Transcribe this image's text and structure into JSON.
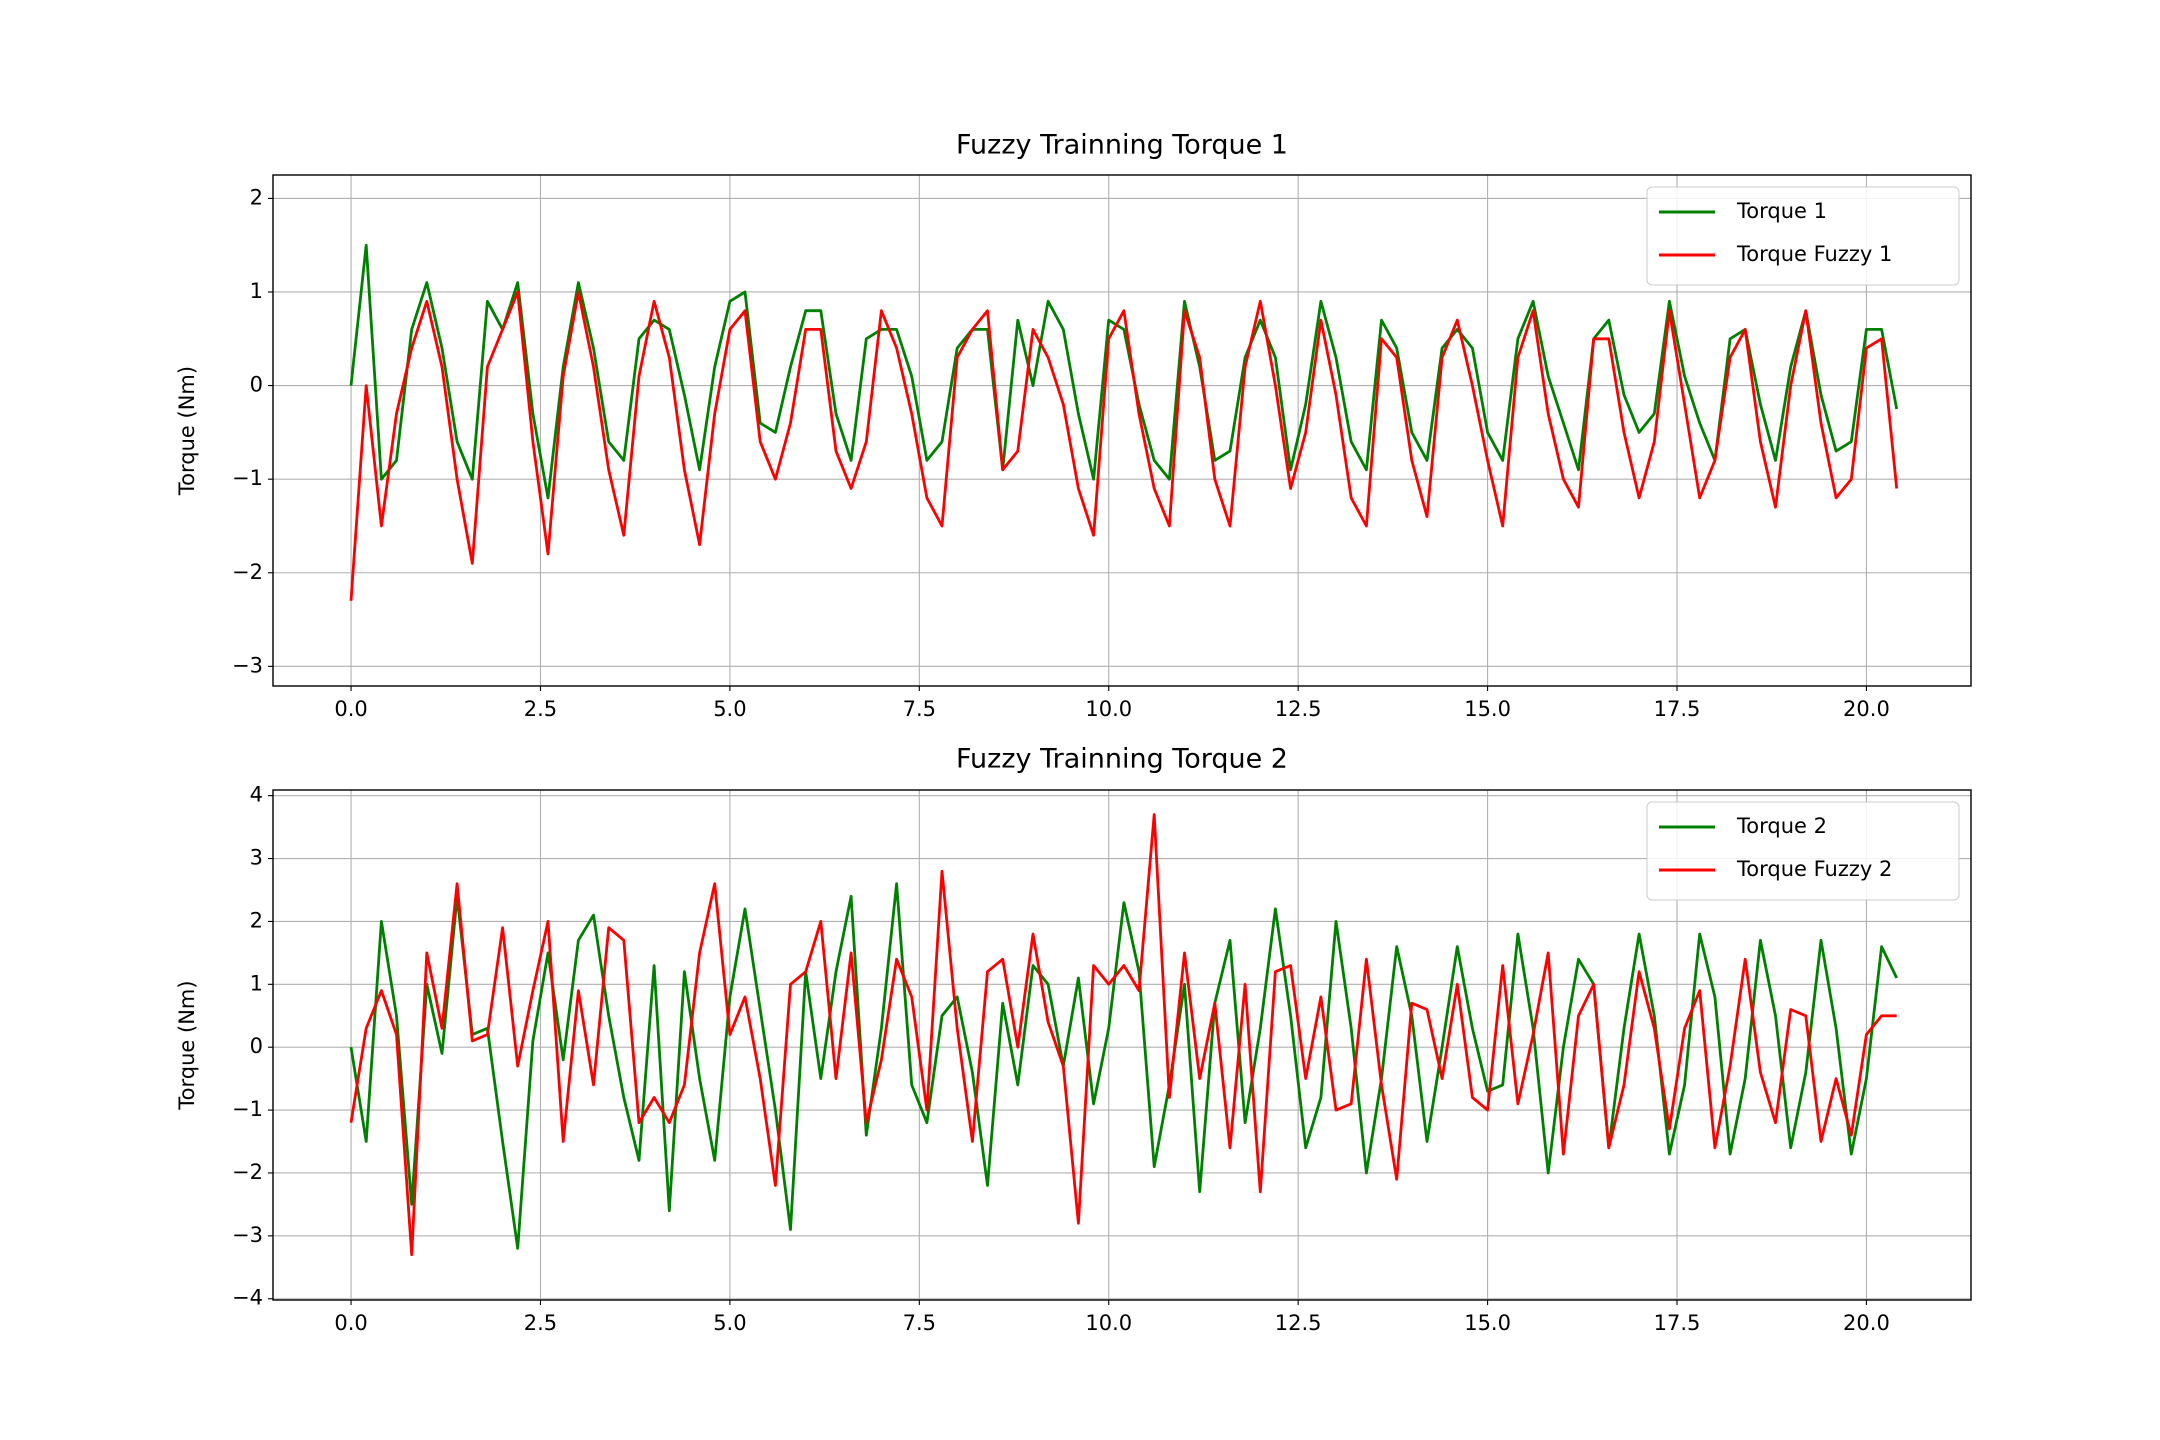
{
  "chart_data": [
    {
      "type": "line",
      "title": "Fuzzy Trainning Torque 1",
      "y_label": "Torque (Nm)",
      "grid": true,
      "legend": "upper right",
      "xlim": [
        -1.03,
        21.38
      ],
      "ylim": [
        -3.21,
        2.25
      ],
      "xticks": [
        {
          "value": 0,
          "label": "0.0"
        },
        2.5,
        {
          "value": 5,
          "label": "5.0"
        },
        7.5,
        {
          "value": 10,
          "label": "10.0"
        },
        12.5,
        {
          "value": 15,
          "label": "15.0"
        },
        17.5,
        {
          "value": 20,
          "label": "20.0"
        }
      ],
      "yticks": [
        {
          "value": -3,
          "label": "−3"
        },
        {
          "value": -2,
          "label": "−2"
        },
        {
          "value": -1,
          "label": "−1"
        },
        0,
        1,
        2
      ],
      "x": [
        0,
        0.2,
        0.4,
        0.6,
        0.8,
        1,
        1.2,
        1.4,
        1.6,
        1.8,
        2,
        2.2,
        2.4,
        2.6,
        2.8,
        3,
        3.2,
        3.4,
        3.6,
        3.8,
        4,
        4.2,
        4.4,
        4.6,
        4.8,
        5,
        5.2,
        5.4,
        5.6,
        5.8,
        6,
        6.2,
        6.4,
        6.6,
        6.8,
        7,
        7.2,
        7.4,
        7.6,
        7.8,
        8,
        8.2,
        8.4,
        8.6,
        8.8,
        9,
        9.2,
        9.4,
        9.6,
        9.8,
        10,
        10.2,
        10.4,
        10.6,
        10.8,
        11,
        11.2,
        11.4,
        11.6,
        11.8,
        12,
        12.2,
        12.4,
        12.6,
        12.8,
        13,
        13.2,
        13.4,
        13.6,
        13.8,
        14,
        14.2,
        14.4,
        14.6,
        14.8,
        15,
        15.2,
        15.4,
        15.6,
        15.8,
        16,
        16.2,
        16.4,
        16.6,
        16.8,
        17,
        17.2,
        17.4,
        17.6,
        17.8,
        18,
        18.2,
        18.4,
        18.6,
        18.8,
        19,
        19.2,
        19.4,
        19.6,
        19.8,
        20,
        20.2,
        20.4
      ],
      "series": [
        {
          "name": "Torque 1",
          "color": "#008000",
          "values": [
            0,
            1.5,
            -1.0,
            -0.8,
            0.6,
            1.1,
            0.4,
            -0.6,
            -1.0,
            0.9,
            0.6,
            1.1,
            -0.3,
            -1.2,
            0.2,
            1.1,
            0.4,
            -0.6,
            -0.8,
            0.5,
            0.7,
            0.6,
            -0.1,
            -0.9,
            0.2,
            0.9,
            1.0,
            -0.4,
            -0.5,
            0.2,
            0.8,
            0.8,
            -0.3,
            -0.8,
            0.5,
            0.6,
            0.6,
            0.1,
            -0.8,
            -0.6,
            0.4,
            0.6,
            0.6,
            -0.9,
            0.7,
            0.0,
            0.9,
            0.6,
            -0.3,
            -1.0,
            0.7,
            0.6,
            -0.2,
            -0.8,
            -1.0,
            0.9,
            0.2,
            -0.8,
            -0.7,
            0.3,
            0.7,
            0.3,
            -0.9,
            -0.2,
            0.9,
            0.3,
            -0.6,
            -0.9,
            0.7,
            0.4,
            -0.5,
            -0.8,
            0.4,
            0.6,
            0.4,
            -0.5,
            -0.8,
            0.5,
            0.9,
            0.1,
            -0.4,
            -0.9,
            0.5,
            0.7,
            -0.1,
            -0.5,
            -0.3,
            0.9,
            0.1,
            -0.4,
            -0.8,
            0.5,
            0.6,
            -0.2,
            -0.8,
            0.2,
            0.8,
            -0.1,
            -0.7,
            -0.6,
            0.6,
            0.6,
            -0.25
          ]
        },
        {
          "name": "Torque Fuzzy 1",
          "color": "#ff0000",
          "values": [
            -2.3,
            0.0,
            -1.5,
            -0.3,
            0.4,
            0.9,
            0.2,
            -1.0,
            -1.9,
            0.2,
            0.6,
            1.0,
            -0.6,
            -1.8,
            0.1,
            1.0,
            0.2,
            -0.9,
            -1.6,
            0.1,
            0.9,
            0.3,
            -0.9,
            -1.7,
            -0.3,
            0.6,
            0.8,
            -0.6,
            -1.0,
            -0.4,
            0.6,
            0.6,
            -0.7,
            -1.1,
            -0.6,
            0.8,
            0.4,
            -0.3,
            -1.2,
            -1.5,
            0.3,
            0.6,
            0.8,
            -0.9,
            -0.7,
            0.6,
            0.3,
            -0.2,
            -1.1,
            -1.6,
            0.5,
            0.8,
            -0.3,
            -1.1,
            -1.5,
            0.8,
            0.3,
            -1.0,
            -1.5,
            0.2,
            0.9,
            0.0,
            -1.1,
            -0.5,
            0.7,
            -0.1,
            -1.2,
            -1.5,
            0.5,
            0.3,
            -0.8,
            -1.4,
            0.3,
            0.7,
            0.0,
            -0.8,
            -1.5,
            0.3,
            0.8,
            -0.3,
            -1.0,
            -1.3,
            0.5,
            0.5,
            -0.5,
            -1.2,
            -0.6,
            0.8,
            -0.2,
            -1.2,
            -0.8,
            0.3,
            0.6,
            -0.6,
            -1.3,
            0.0,
            0.8,
            -0.4,
            -1.2,
            -1.0,
            0.4,
            0.5,
            -1.1
          ]
        }
      ]
    },
    {
      "type": "line",
      "title": "Fuzzy Trainning Torque 2",
      "y_label": "Torque (Nm)",
      "grid": true,
      "legend": "upper right",
      "xlim": [
        -1.03,
        21.38
      ],
      "ylim": [
        -4.02,
        4.09
      ],
      "xticks": [
        {
          "value": 0,
          "label": "0.0"
        },
        2.5,
        {
          "value": 5,
          "label": "5.0"
        },
        7.5,
        {
          "value": 10,
          "label": "10.0"
        },
        12.5,
        {
          "value": 15,
          "label": "15.0"
        },
        17.5,
        {
          "value": 20,
          "label": "20.0"
        }
      ],
      "yticks": [
        {
          "value": -4,
          "label": "−4"
        },
        {
          "value": -3,
          "label": "−3"
        },
        {
          "value": -2,
          "label": "−2"
        },
        {
          "value": -1,
          "label": "−1"
        },
        0,
        1,
        2,
        3,
        4
      ],
      "x": [
        0,
        0.2,
        0.4,
        0.6,
        0.8,
        1,
        1.2,
        1.4,
        1.6,
        1.8,
        2,
        2.2,
        2.4,
        2.6,
        2.8,
        3,
        3.2,
        3.4,
        3.6,
        3.8,
        4,
        4.2,
        4.4,
        4.6,
        4.8,
        5,
        5.2,
        5.4,
        5.6,
        5.8,
        6,
        6.2,
        6.4,
        6.6,
        6.8,
        7,
        7.2,
        7.4,
        7.6,
        7.8,
        8,
        8.2,
        8.4,
        8.6,
        8.8,
        9,
        9.2,
        9.4,
        9.6,
        9.8,
        10,
        10.2,
        10.4,
        10.6,
        10.8,
        11,
        11.2,
        11.4,
        11.6,
        11.8,
        12,
        12.2,
        12.4,
        12.6,
        12.8,
        13,
        13.2,
        13.4,
        13.6,
        13.8,
        14,
        14.2,
        14.4,
        14.6,
        14.8,
        15,
        15.2,
        15.4,
        15.6,
        15.8,
        16,
        16.2,
        16.4,
        16.6,
        16.8,
        17,
        17.2,
        17.4,
        17.6,
        17.8,
        18,
        18.2,
        18.4,
        18.6,
        18.8,
        19,
        19.2,
        19.4,
        19.6,
        19.8,
        20,
        20.2,
        20.4
      ],
      "series": [
        {
          "name": "Torque 2",
          "color": "#008000",
          "values": [
            0,
            -1.5,
            2.0,
            0.5,
            -2.5,
            1.0,
            -0.1,
            2.4,
            0.2,
            0.3,
            -1.5,
            -3.2,
            0.1,
            1.5,
            -0.2,
            1.7,
            2.1,
            0.5,
            -0.8,
            -1.8,
            1.3,
            -2.6,
            1.2,
            -0.5,
            -1.8,
            0.8,
            2.2,
            0.6,
            -1.0,
            -2.9,
            1.2,
            -0.5,
            1.2,
            2.4,
            -1.4,
            0.3,
            2.6,
            -0.6,
            -1.2,
            0.5,
            0.8,
            -0.4,
            -2.2,
            0.7,
            -0.6,
            1.3,
            1.0,
            -0.3,
            1.1,
            -0.9,
            0.3,
            2.3,
            1.2,
            -1.9,
            -0.6,
            1.0,
            -2.3,
            0.7,
            1.7,
            -1.2,
            0.3,
            2.2,
            0.5,
            -1.6,
            -0.8,
            2.0,
            0.3,
            -2.0,
            -0.5,
            1.6,
            0.5,
            -1.5,
            0.0,
            1.6,
            0.3,
            -0.7,
            -0.6,
            1.8,
            0.3,
            -2.0,
            0.0,
            1.4,
            1.0,
            -1.6,
            0.3,
            1.8,
            0.5,
            -1.7,
            -0.6,
            1.8,
            0.8,
            -1.7,
            -0.5,
            1.7,
            0.5,
            -1.6,
            -0.4,
            1.7,
            0.3,
            -1.7,
            -0.5,
            1.6,
            1.1
          ]
        },
        {
          "name": "Torque Fuzzy 2",
          "color": "#ff0000",
          "values": [
            -1.2,
            0.3,
            0.9,
            0.2,
            -3.3,
            1.5,
            0.3,
            2.6,
            0.1,
            0.2,
            1.9,
            -0.3,
            0.9,
            2.0,
            -1.5,
            0.9,
            -0.6,
            1.9,
            1.7,
            -1.2,
            -0.8,
            -1.2,
            -0.6,
            1.5,
            2.6,
            0.2,
            0.8,
            -0.5,
            -2.2,
            1.0,
            1.2,
            2.0,
            -0.5,
            1.5,
            -1.2,
            -0.2,
            1.4,
            0.8,
            -1.0,
            2.8,
            0.3,
            -1.5,
            1.2,
            1.4,
            0.0,
            1.8,
            0.4,
            -0.3,
            -2.8,
            1.3,
            1.0,
            1.3,
            0.9,
            3.7,
            -0.8,
            1.5,
            -0.5,
            0.7,
            -1.6,
            1.0,
            -2.3,
            1.2,
            1.3,
            -0.5,
            0.8,
            -1.0,
            -0.9,
            1.4,
            -0.6,
            -2.1,
            0.7,
            0.6,
            -0.5,
            1.0,
            -0.8,
            -1.0,
            1.3,
            -0.9,
            0.2,
            1.5,
            -1.7,
            0.5,
            1.0,
            -1.6,
            -0.6,
            1.2,
            0.3,
            -1.3,
            0.3,
            0.9,
            -1.6,
            -0.3,
            1.4,
            -0.4,
            -1.2,
            0.6,
            0.5,
            -1.5,
            -0.5,
            -1.4,
            0.2,
            0.5,
            0.5
          ]
        }
      ]
    }
  ]
}
